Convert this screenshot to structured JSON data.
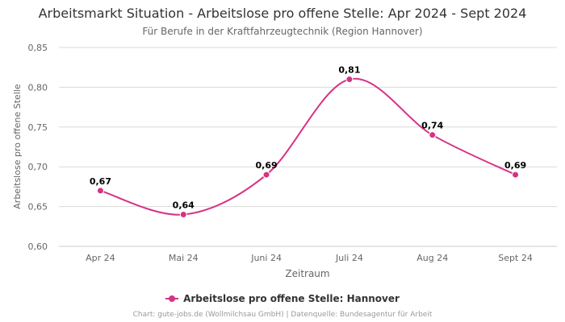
{
  "chart_data": {
    "type": "line",
    "title": "Arbeitsmarkt Situation - Arbeitslose pro offene Stelle: Apr 2024 - Sept 2024",
    "subtitle": "Für Berufe in der Kraftfahrzeugtechnik (Region Hannover)",
    "xlabel": "Zeitraum",
    "ylabel": "Arbeitslose pro offene Stelle",
    "categories": [
      "Apr 24",
      "Mai 24",
      "Juni 24",
      "Juli 24",
      "Aug 24",
      "Sept 24"
    ],
    "series": [
      {
        "name": "Arbeitslose pro offene Stelle: Hannover",
        "values": [
          0.67,
          0.64,
          0.69,
          0.81,
          0.74,
          0.69
        ],
        "labels": [
          "0,67",
          "0,64",
          "0,69",
          "0,81",
          "0,74",
          "0,69"
        ],
        "color": "#d63384"
      }
    ],
    "ylim": [
      0.6,
      0.85
    ],
    "yticks": [
      0.6,
      0.65,
      0.7,
      0.75,
      0.8,
      0.85
    ],
    "ytick_labels": [
      "0,60",
      "0,65",
      "0,70",
      "0,75",
      "0,80",
      "0,85"
    ],
    "grid": true,
    "legend_position": "bottom-center"
  },
  "credits": "Chart: gute-jobs.de (Wollmilchsau GmbH) | Datenquelle: Bundesagentur für Arbeit"
}
